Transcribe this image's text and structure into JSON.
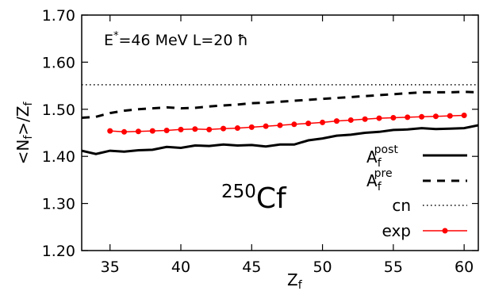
{
  "chart_data": {
    "type": "line",
    "annotation": {
      "prefix": "E",
      "sup": "*",
      "rest": "=46 MeV  L=20 ħ"
    },
    "nucleus": {
      "mass": "250",
      "symbol": "Cf"
    },
    "xlabel": {
      "main": "Z",
      "sub": "f"
    },
    "ylabel": {
      "pre": "<N",
      "sub1": "f",
      "mid": ">/Z",
      "sub2": "f"
    },
    "xlim": [
      33,
      61
    ],
    "ylim": [
      1.2,
      1.7
    ],
    "xticks": [
      "35",
      "40",
      "45",
      "50",
      "55",
      "60"
    ],
    "xtick_values": [
      35,
      40,
      45,
      50,
      55,
      60
    ],
    "yticks": [
      "1.20",
      "1.30",
      "1.40",
      "1.50",
      "1.60",
      "1.70"
    ],
    "ytick_values": [
      1.2,
      1.3,
      1.4,
      1.5,
      1.6,
      1.7
    ],
    "grid": false,
    "legend_position": "bottom-right",
    "series": [
      {
        "key": "post",
        "legend_main": "A",
        "legend_sub": "f",
        "legend_sup": "post",
        "color": "#000000",
        "style": "solid",
        "x": [
          33,
          34,
          35,
          36,
          37,
          38,
          39,
          40,
          41,
          42,
          43,
          44,
          45,
          46,
          47,
          48,
          49,
          50,
          51,
          52,
          53,
          54,
          55,
          56,
          57,
          58,
          59,
          60,
          61
        ],
        "y": [
          1.412,
          1.405,
          1.412,
          1.41,
          1.413,
          1.414,
          1.42,
          1.418,
          1.423,
          1.422,
          1.425,
          1.423,
          1.424,
          1.421,
          1.425,
          1.425,
          1.434,
          1.438,
          1.444,
          1.446,
          1.45,
          1.452,
          1.456,
          1.457,
          1.46,
          1.458,
          1.459,
          1.46,
          1.466
        ]
      },
      {
        "key": "pre",
        "legend_main": "A",
        "legend_sub": "f",
        "legend_sup": "pre",
        "color": "#000000",
        "style": "dashed",
        "x": [
          33,
          34,
          35,
          36,
          37,
          38,
          39,
          40,
          41,
          42,
          43,
          44,
          45,
          46,
          47,
          48,
          49,
          50,
          51,
          52,
          53,
          54,
          55,
          56,
          57,
          58,
          59,
          60,
          61
        ],
        "y": [
          1.482,
          1.484,
          1.492,
          1.497,
          1.5,
          1.502,
          1.504,
          1.502,
          1.503,
          1.506,
          1.508,
          1.51,
          1.513,
          1.514,
          1.516,
          1.518,
          1.52,
          1.522,
          1.524,
          1.526,
          1.528,
          1.53,
          1.532,
          1.534,
          1.536,
          1.536,
          1.536,
          1.537,
          1.536
        ]
      },
      {
        "key": "cn",
        "legend_main": "cn",
        "color": "#000000",
        "style": "dotted",
        "x": [
          33,
          61
        ],
        "y": [
          1.552,
          1.552
        ]
      },
      {
        "key": "exp",
        "legend_main": "exp",
        "color": "#ff0000",
        "style": "solid-markers",
        "x": [
          35,
          36,
          37,
          38,
          39,
          40,
          41,
          42,
          43,
          44,
          45,
          46,
          47,
          48,
          49,
          50,
          51,
          52,
          53,
          54,
          55,
          56,
          57,
          58,
          59,
          60
        ],
        "y": [
          1.454,
          1.452,
          1.453,
          1.454,
          1.455,
          1.457,
          1.458,
          1.457,
          1.459,
          1.46,
          1.462,
          1.464,
          1.466,
          1.468,
          1.47,
          1.472,
          1.475,
          1.477,
          1.479,
          1.481,
          1.482,
          1.483,
          1.484,
          1.485,
          1.486,
          1.487
        ]
      }
    ]
  }
}
